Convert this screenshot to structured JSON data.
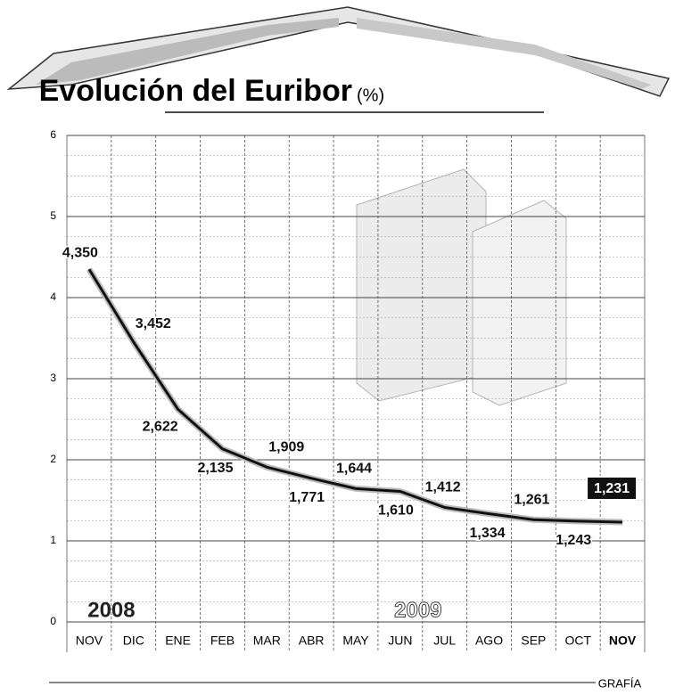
{
  "chart_data": {
    "type": "line",
    "title": "Evolución del Euribor",
    "unit_label": "(%)",
    "categories": [
      "NOV",
      "DIC",
      "ENE",
      "FEB",
      "MAR",
      "ABR",
      "MAY",
      "JUN",
      "JUL",
      "AGO",
      "SEP",
      "OCT",
      "NOV"
    ],
    "values": [
      4.35,
      3.452,
      2.622,
      2.135,
      1.909,
      1.771,
      1.644,
      1.61,
      1.412,
      1.334,
      1.261,
      1.243,
      1.231
    ],
    "value_labels": [
      "4,350",
      "3,452",
      "2,622",
      "2,135",
      "1,909",
      "1,771",
      "1,644",
      "1,610",
      "1,412",
      "1,334",
      "1,261",
      "1,243",
      "1,231"
    ],
    "color": "#111111",
    "ylim": [
      0,
      6
    ],
    "yticks": [
      0,
      1,
      2,
      3,
      4,
      5,
      6
    ],
    "grid": true,
    "annotations": [
      "2008",
      "2009"
    ],
    "source": "GRAFÍA"
  }
}
